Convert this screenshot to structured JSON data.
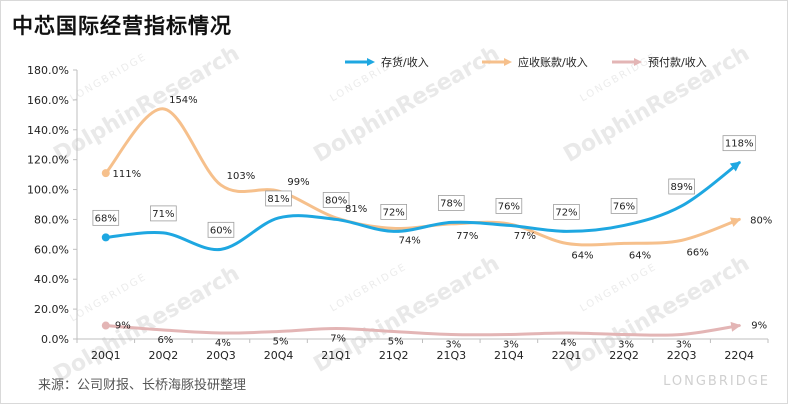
{
  "title": "中芯国际经营指标情况",
  "source": "来源：公司财报、长桥海豚投研整理",
  "watermark": {
    "main": "DolphinResearch",
    "sub": "LONGBRIDGE",
    "brand": "LONGBRIDGE"
  },
  "chart_data": {
    "type": "line",
    "categories": [
      "20Q1",
      "20Q2",
      "20Q3",
      "20Q4",
      "21Q1",
      "21Q2",
      "21Q3",
      "21Q4",
      "22Q1",
      "22Q2",
      "22Q3",
      "22Q4"
    ],
    "ylim": [
      0,
      180
    ],
    "yticks": [
      "0.0%",
      "20.0%",
      "40.0%",
      "60.0%",
      "80.0%",
      "100.0%",
      "120.0%",
      "140.0%",
      "160.0%",
      "180.0%"
    ],
    "series": [
      {
        "name": "存货/收入",
        "color": "#1ea7e1",
        "values": [
          68,
          71,
          60,
          81,
          80,
          72,
          78,
          76,
          72,
          76,
          89,
          118
        ],
        "labels": [
          "68%",
          "71%",
          "60%",
          "81%",
          "80%",
          "72%",
          "78%",
          "76%",
          "72%",
          "76%",
          "89%",
          "118%"
        ],
        "boxed": true
      },
      {
        "name": "应收账款/收入",
        "color": "#f6c08c",
        "values": [
          111,
          154,
          103,
          99,
          81,
          74,
          77,
          77,
          64,
          64,
          66,
          80
        ],
        "labels": [
          "111%",
          "154%",
          "103%",
          "99%",
          "81%",
          "74%",
          "77%",
          "77%",
          "64%",
          "64%",
          "66%",
          "80%"
        ],
        "boxed": false
      },
      {
        "name": "预付款/收入",
        "color": "#e3b5b5",
        "values": [
          9,
          6,
          4,
          5,
          7,
          5,
          3,
          3,
          4,
          3,
          3,
          9
        ],
        "labels": [
          "9%",
          "6%",
          "4%",
          "5%",
          "7%",
          "5%",
          "3%",
          "3%",
          "4%",
          "3%",
          "3%",
          "9%"
        ],
        "boxed": false
      }
    ]
  }
}
